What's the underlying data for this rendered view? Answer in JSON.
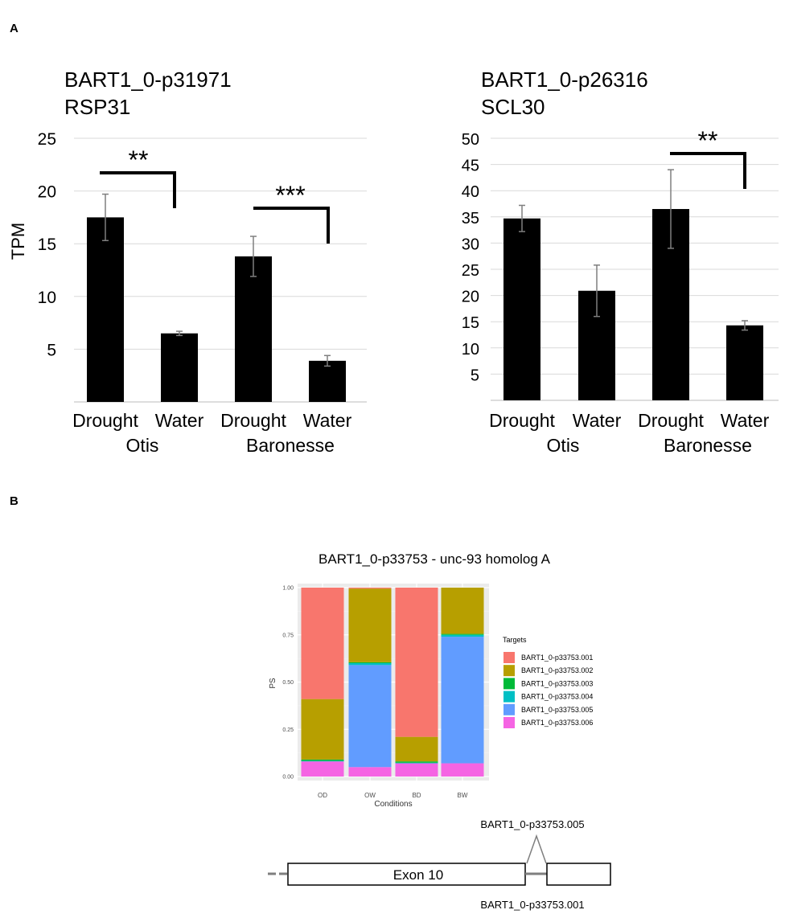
{
  "panels": {
    "a": "A",
    "b": "B"
  },
  "chart_data": [
    {
      "type": "bar",
      "title": "BART1_0-p31971",
      "subtitle": "RSP31",
      "ylabel": "TPM",
      "ylim": [
        0,
        25
      ],
      "yticks": [
        "5",
        "10",
        "15",
        "20",
        "25"
      ],
      "categories": [
        "Drought",
        "Water",
        "Drought",
        "Water"
      ],
      "groups": [
        "Otis",
        "Baronesse"
      ],
      "values": [
        17.5,
        6.5,
        13.8,
        3.9
      ],
      "errors": [
        2.2,
        0.2,
        1.9,
        0.5
      ],
      "significance": [
        "**",
        "***"
      ],
      "bar_color": "#000000"
    },
    {
      "type": "bar",
      "title": "BART1_0-p26316",
      "subtitle": "SCL30",
      "ylabel": "",
      "ylim": [
        0,
        50
      ],
      "yticks": [
        "5",
        "10",
        "15",
        "20",
        "25",
        "30",
        "35",
        "40",
        "45",
        "50"
      ],
      "categories": [
        "Drought",
        "Water",
        "Drought",
        "Water"
      ],
      "groups": [
        "Otis",
        "Baronesse"
      ],
      "values": [
        34.7,
        20.9,
        36.5,
        14.3
      ],
      "errors": [
        2.5,
        4.9,
        7.5,
        0.9
      ],
      "significance": [
        "**"
      ],
      "bar_color": "#000000"
    },
    {
      "type": "bar",
      "stacked": true,
      "title": "BART1_0-p33753 - unc-93 homolog A",
      "xlabel": "Conditions",
      "ylabel": "PS",
      "ylim": [
        0,
        1
      ],
      "yticks": [
        "0.00",
        "0.25",
        "0.50",
        "0.75",
        "1.00"
      ],
      "categories": [
        "OD",
        "OW",
        "BD",
        "BW"
      ],
      "legend_title": "Targets",
      "legend_position": "right",
      "series": [
        {
          "name": "BART1_0-p33753.006",
          "color": "#F564E3",
          "values": [
            0.08,
            0.05,
            0.07,
            0.07
          ]
        },
        {
          "name": "BART1_0-p33753.005",
          "color": "#619CFF",
          "values": [
            0.0,
            0.54,
            0.0,
            0.67
          ]
        },
        {
          "name": "BART1_0-p33753.004",
          "color": "#00BFC4",
          "values": [
            0.003,
            0.01,
            0.003,
            0.01
          ]
        },
        {
          "name": "BART1_0-p33753.003",
          "color": "#00BA38",
          "values": [
            0.007,
            0.005,
            0.007,
            0.005
          ]
        },
        {
          "name": "BART1_0-p33753.002",
          "color": "#B79F00",
          "values": [
            0.32,
            0.39,
            0.13,
            0.245
          ]
        },
        {
          "name": "BART1_0-p33753.001",
          "color": "#F8766D",
          "values": [
            0.59,
            0.005,
            0.79,
            0.0
          ]
        }
      ],
      "legend_order": [
        "BART1_0-p33753.001",
        "BART1_0-p33753.002",
        "BART1_0-p33753.003",
        "BART1_0-p33753.004",
        "BART1_0-p33753.005",
        "BART1_0-p33753.006"
      ]
    }
  ],
  "gene_model": {
    "exon_label": "Exon 10",
    "top_label": "BART1_0-p33753.005",
    "bottom_label": "BART1_0-p33753.001"
  }
}
